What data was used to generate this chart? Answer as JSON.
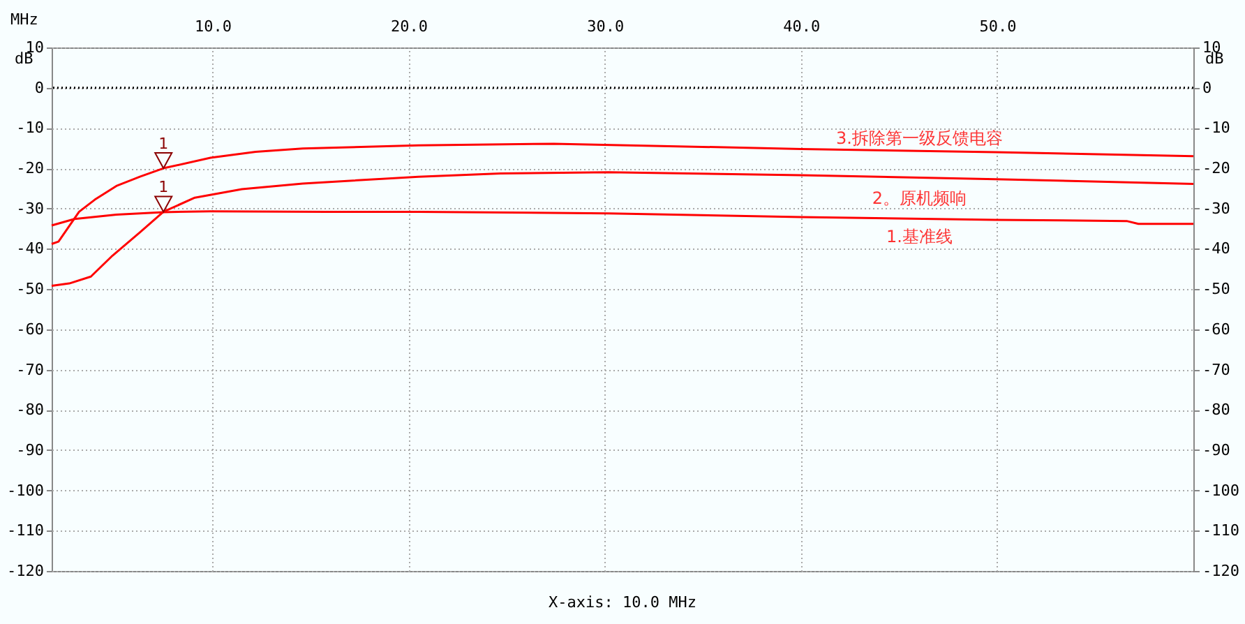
{
  "chart_data": {
    "type": "line",
    "xlabel": "MHz",
    "ylabel": "dB",
    "y2label": "dB",
    "xlim": [
      1.8,
      60
    ],
    "xticks": [
      {
        "value": 10,
        "label": "10.0"
      },
      {
        "value": 20,
        "label": "20.0"
      },
      {
        "value": 30,
        "label": "30.0"
      },
      {
        "value": 40,
        "label": "40.0"
      },
      {
        "value": 50,
        "label": "50.0"
      }
    ],
    "ylim": [
      -120,
      10
    ],
    "yticks": [
      10,
      0,
      -10,
      -20,
      -30,
      -40,
      -50,
      -60,
      -70,
      -80,
      -90,
      -100,
      -110,
      -120
    ],
    "y2lim": [
      -120,
      10
    ],
    "y2ticks": [
      10,
      0,
      -10,
      -20,
      -30,
      -40,
      -50,
      -60,
      -70,
      -80,
      -90,
      -100,
      -110,
      -120
    ],
    "grid": true,
    "marker": "none",
    "line_style": "solid",
    "ref_lines": [
      {
        "axis": "y",
        "value": 0,
        "color": "#000000",
        "line_style": "dotted"
      }
    ],
    "series": [
      {
        "name": "1.基准线",
        "color": "#ff0000",
        "x": [
          1.8,
          2.96,
          5.1,
          7.5,
          9.9,
          15.8,
          20.5,
          30.2,
          40,
          49.9,
          56.6,
          57.2,
          60
        ],
        "values": [
          -34.2,
          -32.6,
          -31.5,
          -30.9,
          -30.7,
          -30.8,
          -30.8,
          -31.2,
          -32.1,
          -32.8,
          -33.1,
          -33.8,
          -33.8
        ]
      },
      {
        "name": "2。原机频响",
        "color": "#ff0000",
        "x": [
          1.8,
          2.7,
          3.8,
          4.9,
          6.3,
          7.5,
          9.1,
          11.5,
          14.6,
          20.5,
          24.7,
          30.2,
          40,
          49.9,
          60
        ],
        "values": [
          -49.2,
          -48.6,
          -46.9,
          -41.7,
          -35.9,
          -30.8,
          -27.3,
          -25.2,
          -23.8,
          -22.1,
          -21.3,
          -21,
          -21.7,
          -22.7,
          -23.9
        ]
      },
      {
        "name": "3.拆除第一级反馈电容",
        "color": "#ff0000",
        "x": [
          1.8,
          2.15,
          3.2,
          4,
          5.1,
          6.3,
          7.5,
          9.9,
          12.2,
          14.6,
          20.5,
          27.4,
          40,
          49.9,
          60
        ],
        "values": [
          -38.8,
          -38.2,
          -30.8,
          -27.8,
          -24.4,
          -22.1,
          -20,
          -17.4,
          -15.9,
          -15.1,
          -14.3,
          -13.9,
          -15.2,
          -16,
          -17
        ]
      }
    ],
    "annotations": [
      {
        "text": "1",
        "x": 7.5,
        "y": -30.8
      },
      {
        "text": "1",
        "x": 7.5,
        "y": -20
      },
      "X-axis: 10.0 MHz"
    ]
  }
}
